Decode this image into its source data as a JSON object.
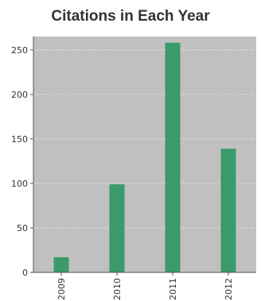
{
  "chart_data": {
    "type": "bar",
    "title": "Citations in Each Year",
    "xlabel": "",
    "ylabel": "",
    "categories": [
      "2009",
      "2010",
      "2011",
      "2012"
    ],
    "values": [
      17,
      99,
      258,
      139
    ],
    "ylim": [
      0,
      265
    ],
    "yticks": [
      0,
      50,
      100,
      150,
      200,
      250
    ],
    "grid": true,
    "legend": "none",
    "colors": {
      "bar": "#3a9a6a",
      "plot_background": "#c0c0c0",
      "gridline": "#e6e6e6",
      "axis": "#555555"
    }
  }
}
